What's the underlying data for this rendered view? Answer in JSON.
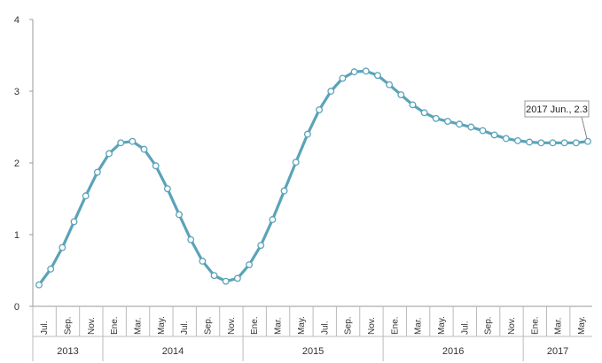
{
  "chart_data": {
    "type": "line",
    "title": "",
    "xlabel": "",
    "ylabel": "",
    "ylim": [
      0,
      4
    ],
    "yticks": [
      0,
      1,
      2,
      3,
      4
    ],
    "grid": false,
    "legend": "none",
    "line_color": "#5ba3b8",
    "marker_fill": "#ffffff",
    "x": [
      "2013-07",
      "2013-08",
      "2013-09",
      "2013-10",
      "2013-11",
      "2013-12",
      "2014-01",
      "2014-02",
      "2014-03",
      "2014-04",
      "2014-05",
      "2014-06",
      "2014-07",
      "2014-08",
      "2014-09",
      "2014-10",
      "2014-11",
      "2014-12",
      "2015-01",
      "2015-02",
      "2015-03",
      "2015-04",
      "2015-05",
      "2015-06",
      "2015-07",
      "2015-08",
      "2015-09",
      "2015-10",
      "2015-11",
      "2015-12",
      "2016-01",
      "2016-02",
      "2016-03",
      "2016-04",
      "2016-05",
      "2016-06",
      "2016-07",
      "2016-08",
      "2016-09",
      "2016-10",
      "2016-11",
      "2016-12",
      "2017-01",
      "2017-02",
      "2017-03",
      "2017-04",
      "2017-05",
      "2017-06"
    ],
    "values": [
      0.3,
      0.52,
      0.82,
      1.18,
      1.54,
      1.87,
      2.13,
      2.28,
      2.3,
      2.19,
      1.96,
      1.64,
      1.28,
      0.93,
      0.63,
      0.43,
      0.35,
      0.39,
      0.58,
      0.85,
      1.21,
      1.61,
      2.01,
      2.4,
      2.74,
      3.0,
      3.18,
      3.27,
      3.28,
      3.22,
      3.09,
      2.95,
      2.81,
      2.7,
      2.62,
      2.58,
      2.54,
      2.5,
      2.45,
      2.39,
      2.34,
      2.31,
      2.29,
      2.28,
      2.28,
      2.28,
      2.28,
      2.3
    ],
    "tick_labels": [
      "Jul.",
      "Sep.",
      "Nov.",
      "Ene.",
      "Mar.",
      "May.",
      "Jul.",
      "Sep.",
      "Nov.",
      "Ene.",
      "Mar.",
      "May.",
      "Jul.",
      "Sep.",
      "Nov.",
      "Ene.",
      "Mar.",
      "May.",
      "Jul.",
      "Sep.",
      "Nov.",
      "Ene.",
      "Mar.",
      "May."
    ],
    "years": [
      "2013",
      "2014",
      "2015",
      "2016",
      "2017"
    ],
    "annotation": {
      "text": "2017 Jun., 2.3"
    }
  }
}
